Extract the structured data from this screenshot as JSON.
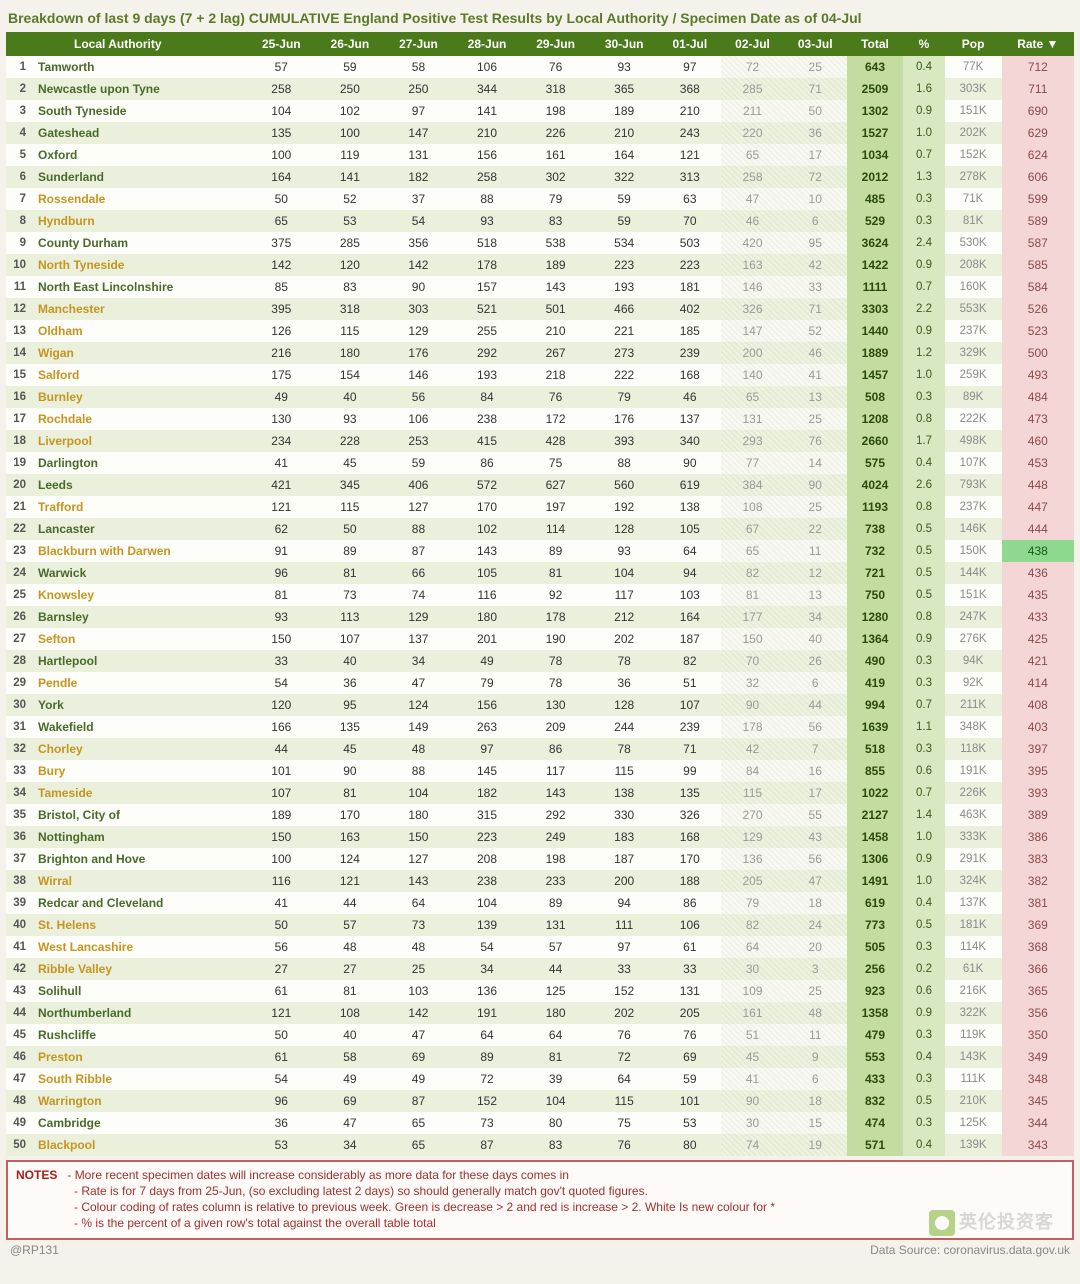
{
  "title": "Breakdown of last 9 days (7 + 2 lag)  CUMULATIVE England Positive Test Results by Local Authority / Specimen Date as of 04-Jul",
  "columns": [
    "Local Authority",
    "25-Jun",
    "26-Jun",
    "27-Jun",
    "28-Jun",
    "29-Jun",
    "30-Jun",
    "01-Jul",
    "02-Jul",
    "03-Jul",
    "Total",
    "%",
    "Pop",
    "Rate ▼"
  ],
  "lag_cols": [
    8,
    9
  ],
  "rate_color_default": "#f5d6d6",
  "rate_text_default": "#8a4a4a",
  "highlighted_rows": [
    7,
    8,
    10,
    12,
    13,
    14,
    15,
    16,
    17,
    18,
    21,
    23,
    25,
    27,
    29,
    32,
    33,
    34,
    38,
    40,
    41,
    42,
    46,
    47,
    48,
    50
  ],
  "rows": [
    {
      "n": 1,
      "la": "Tamworth",
      "d": [
        57,
        59,
        58,
        106,
        76,
        93,
        97,
        72,
        25
      ],
      "total": 643,
      "pct": "0.4",
      "pop": "77K",
      "rate": 712
    },
    {
      "n": 2,
      "la": "Newcastle upon Tyne",
      "d": [
        258,
        250,
        250,
        344,
        318,
        365,
        368,
        285,
        71
      ],
      "total": 2509,
      "pct": "1.6",
      "pop": "303K",
      "rate": 711
    },
    {
      "n": 3,
      "la": "South Tyneside",
      "d": [
        104,
        102,
        97,
        141,
        198,
        189,
        210,
        211,
        50
      ],
      "total": 1302,
      "pct": "0.9",
      "pop": "151K",
      "rate": 690
    },
    {
      "n": 4,
      "la": "Gateshead",
      "d": [
        135,
        100,
        147,
        210,
        226,
        210,
        243,
        220,
        36
      ],
      "total": 1527,
      "pct": "1.0",
      "pop": "202K",
      "rate": 629
    },
    {
      "n": 5,
      "la": "Oxford",
      "d": [
        100,
        119,
        131,
        156,
        161,
        164,
        121,
        65,
        17
      ],
      "total": 1034,
      "pct": "0.7",
      "pop": "152K",
      "rate": 624
    },
    {
      "n": 6,
      "la": "Sunderland",
      "d": [
        164,
        141,
        182,
        258,
        302,
        322,
        313,
        258,
        72
      ],
      "total": 2012,
      "pct": "1.3",
      "pop": "278K",
      "rate": 606
    },
    {
      "n": 7,
      "la": "Rossendale",
      "d": [
        50,
        52,
        37,
        88,
        79,
        59,
        63,
        47,
        10
      ],
      "total": 485,
      "pct": "0.3",
      "pop": "71K",
      "rate": 599
    },
    {
      "n": 8,
      "la": "Hyndburn",
      "d": [
        65,
        53,
        54,
        93,
        83,
        59,
        70,
        46,
        6
      ],
      "total": 529,
      "pct": "0.3",
      "pop": "81K",
      "rate": 589
    },
    {
      "n": 9,
      "la": "County Durham",
      "d": [
        375,
        285,
        356,
        518,
        538,
        534,
        503,
        420,
        95
      ],
      "total": 3624,
      "pct": "2.4",
      "pop": "530K",
      "rate": 587
    },
    {
      "n": 10,
      "la": "North Tyneside",
      "d": [
        142,
        120,
        142,
        178,
        189,
        223,
        223,
        163,
        42
      ],
      "total": 1422,
      "pct": "0.9",
      "pop": "208K",
      "rate": 585
    },
    {
      "n": 11,
      "la": "North East Lincolnshire",
      "d": [
        85,
        83,
        90,
        157,
        143,
        193,
        181,
        146,
        33
      ],
      "total": 1111,
      "pct": "0.7",
      "pop": "160K",
      "rate": 584
    },
    {
      "n": 12,
      "la": "Manchester",
      "d": [
        395,
        318,
        303,
        521,
        501,
        466,
        402,
        326,
        71
      ],
      "total": 3303,
      "pct": "2.2",
      "pop": "553K",
      "rate": 526
    },
    {
      "n": 13,
      "la": "Oldham",
      "d": [
        126,
        115,
        129,
        255,
        210,
        221,
        185,
        147,
        52
      ],
      "total": 1440,
      "pct": "0.9",
      "pop": "237K",
      "rate": 523
    },
    {
      "n": 14,
      "la": "Wigan",
      "d": [
        216,
        180,
        176,
        292,
        267,
        273,
        239,
        200,
        46
      ],
      "total": 1889,
      "pct": "1.2",
      "pop": "329K",
      "rate": 500
    },
    {
      "n": 15,
      "la": "Salford",
      "d": [
        175,
        154,
        146,
        193,
        218,
        222,
        168,
        140,
        41
      ],
      "total": 1457,
      "pct": "1.0",
      "pop": "259K",
      "rate": 493
    },
    {
      "n": 16,
      "la": "Burnley",
      "d": [
        49,
        40,
        56,
        84,
        76,
        79,
        46,
        65,
        13
      ],
      "total": 508,
      "pct": "0.3",
      "pop": "89K",
      "rate": 484
    },
    {
      "n": 17,
      "la": "Rochdale",
      "d": [
        130,
        93,
        106,
        238,
        172,
        176,
        137,
        131,
        25
      ],
      "total": 1208,
      "pct": "0.8",
      "pop": "222K",
      "rate": 473
    },
    {
      "n": 18,
      "la": "Liverpool",
      "d": [
        234,
        228,
        253,
        415,
        428,
        393,
        340,
        293,
        76
      ],
      "total": 2660,
      "pct": "1.7",
      "pop": "498K",
      "rate": 460
    },
    {
      "n": 19,
      "la": "Darlington",
      "d": [
        41,
        45,
        59,
        86,
        75,
        88,
        90,
        77,
        14
      ],
      "total": 575,
      "pct": "0.4",
      "pop": "107K",
      "rate": 453
    },
    {
      "n": 20,
      "la": "Leeds",
      "d": [
        421,
        345,
        406,
        572,
        627,
        560,
        619,
        384,
        90
      ],
      "total": 4024,
      "pct": "2.6",
      "pop": "793K",
      "rate": 448
    },
    {
      "n": 21,
      "la": "Trafford",
      "d": [
        121,
        115,
        127,
        170,
        197,
        192,
        138,
        108,
        25
      ],
      "total": 1193,
      "pct": "0.8",
      "pop": "237K",
      "rate": 447
    },
    {
      "n": 22,
      "la": "Lancaster",
      "d": [
        62,
        50,
        88,
        102,
        114,
        128,
        105,
        67,
        22
      ],
      "total": 738,
      "pct": "0.5",
      "pop": "146K",
      "rate": 444
    },
    {
      "n": 23,
      "la": "Blackburn with Darwen",
      "d": [
        91,
        89,
        87,
        143,
        89,
        93,
        64,
        65,
        11
      ],
      "total": 732,
      "pct": "0.5",
      "pop": "150K",
      "rate": 438,
      "rate_bg": "#8ed98e",
      "rate_text": "#1a5a1a"
    },
    {
      "n": 24,
      "la": "Warwick",
      "d": [
        96,
        81,
        66,
        105,
        81,
        104,
        94,
        82,
        12
      ],
      "total": 721,
      "pct": "0.5",
      "pop": "144K",
      "rate": 436
    },
    {
      "n": 25,
      "la": "Knowsley",
      "d": [
        81,
        73,
        74,
        116,
        92,
        117,
        103,
        81,
        13
      ],
      "total": 750,
      "pct": "0.5",
      "pop": "151K",
      "rate": 435
    },
    {
      "n": 26,
      "la": "Barnsley",
      "d": [
        93,
        113,
        129,
        180,
        178,
        212,
        164,
        177,
        34
      ],
      "total": 1280,
      "pct": "0.8",
      "pop": "247K",
      "rate": 433
    },
    {
      "n": 27,
      "la": "Sefton",
      "d": [
        150,
        107,
        137,
        201,
        190,
        202,
        187,
        150,
        40
      ],
      "total": 1364,
      "pct": "0.9",
      "pop": "276K",
      "rate": 425
    },
    {
      "n": 28,
      "la": "Hartlepool",
      "d": [
        33,
        40,
        34,
        49,
        78,
        78,
        82,
        70,
        26
      ],
      "total": 490,
      "pct": "0.3",
      "pop": "94K",
      "rate": 421
    },
    {
      "n": 29,
      "la": "Pendle",
      "d": [
        54,
        36,
        47,
        79,
        78,
        36,
        51,
        32,
        6
      ],
      "total": 419,
      "pct": "0.3",
      "pop": "92K",
      "rate": 414
    },
    {
      "n": 30,
      "la": "York",
      "d": [
        120,
        95,
        124,
        156,
        130,
        128,
        107,
        90,
        44
      ],
      "total": 994,
      "pct": "0.7",
      "pop": "211K",
      "rate": 408
    },
    {
      "n": 31,
      "la": "Wakefield",
      "d": [
        166,
        135,
        149,
        263,
        209,
        244,
        239,
        178,
        56
      ],
      "total": 1639,
      "pct": "1.1",
      "pop": "348K",
      "rate": 403
    },
    {
      "n": 32,
      "la": "Chorley",
      "d": [
        44,
        45,
        48,
        97,
        86,
        78,
        71,
        42,
        7
      ],
      "total": 518,
      "pct": "0.3",
      "pop": "118K",
      "rate": 397
    },
    {
      "n": 33,
      "la": "Bury",
      "d": [
        101,
        90,
        88,
        145,
        117,
        115,
        99,
        84,
        16
      ],
      "total": 855,
      "pct": "0.6",
      "pop": "191K",
      "rate": 395
    },
    {
      "n": 34,
      "la": "Tameside",
      "d": [
        107,
        81,
        104,
        182,
        143,
        138,
        135,
        115,
        17
      ],
      "total": 1022,
      "pct": "0.7",
      "pop": "226K",
      "rate": 393
    },
    {
      "n": 35,
      "la": "Bristol, City of",
      "d": [
        189,
        170,
        180,
        315,
        292,
        330,
        326,
        270,
        55
      ],
      "total": 2127,
      "pct": "1.4",
      "pop": "463K",
      "rate": 389
    },
    {
      "n": 36,
      "la": "Nottingham",
      "d": [
        150,
        163,
        150,
        223,
        249,
        183,
        168,
        129,
        43
      ],
      "total": 1458,
      "pct": "1.0",
      "pop": "333K",
      "rate": 386
    },
    {
      "n": 37,
      "la": "Brighton and Hove",
      "d": [
        100,
        124,
        127,
        208,
        198,
        187,
        170,
        136,
        56
      ],
      "total": 1306,
      "pct": "0.9",
      "pop": "291K",
      "rate": 383
    },
    {
      "n": 38,
      "la": "Wirral",
      "d": [
        116,
        121,
        143,
        238,
        233,
        200,
        188,
        205,
        47
      ],
      "total": 1491,
      "pct": "1.0",
      "pop": "324K",
      "rate": 382
    },
    {
      "n": 39,
      "la": "Redcar and Cleveland",
      "d": [
        41,
        44,
        64,
        104,
        89,
        94,
        86,
        79,
        18
      ],
      "total": 619,
      "pct": "0.4",
      "pop": "137K",
      "rate": 381
    },
    {
      "n": 40,
      "la": "St. Helens",
      "d": [
        50,
        57,
        73,
        139,
        131,
        111,
        106,
        82,
        24
      ],
      "total": 773,
      "pct": "0.5",
      "pop": "181K",
      "rate": 369
    },
    {
      "n": 41,
      "la": "West Lancashire",
      "d": [
        56,
        48,
        48,
        54,
        57,
        97,
        61,
        64,
        20
      ],
      "total": 505,
      "pct": "0.3",
      "pop": "114K",
      "rate": 368
    },
    {
      "n": 42,
      "la": "Ribble Valley",
      "d": [
        27,
        27,
        25,
        34,
        44,
        33,
        33,
        30,
        3
      ],
      "total": 256,
      "pct": "0.2",
      "pop": "61K",
      "rate": 366
    },
    {
      "n": 43,
      "la": "Solihull",
      "d": [
        61,
        81,
        103,
        136,
        125,
        152,
        131,
        109,
        25
      ],
      "total": 923,
      "pct": "0.6",
      "pop": "216K",
      "rate": 365
    },
    {
      "n": 44,
      "la": "Northumberland",
      "d": [
        121,
        108,
        142,
        191,
        180,
        202,
        205,
        161,
        48
      ],
      "total": 1358,
      "pct": "0.9",
      "pop": "322K",
      "rate": 356
    },
    {
      "n": 45,
      "la": "Rushcliffe",
      "d": [
        50,
        40,
        47,
        64,
        64,
        76,
        76,
        51,
        11
      ],
      "total": 479,
      "pct": "0.3",
      "pop": "119K",
      "rate": 350
    },
    {
      "n": 46,
      "la": "Preston",
      "d": [
        61,
        58,
        69,
        89,
        81,
        72,
        69,
        45,
        9
      ],
      "total": 553,
      "pct": "0.4",
      "pop": "143K",
      "rate": 349
    },
    {
      "n": 47,
      "la": "South Ribble",
      "d": [
        54,
        49,
        49,
        72,
        39,
        64,
        59,
        41,
        6
      ],
      "total": 433,
      "pct": "0.3",
      "pop": "111K",
      "rate": 348
    },
    {
      "n": 48,
      "la": "Warrington",
      "d": [
        96,
        69,
        87,
        152,
        104,
        115,
        101,
        90,
        18
      ],
      "total": 832,
      "pct": "0.5",
      "pop": "210K",
      "rate": 345
    },
    {
      "n": 49,
      "la": "Cambridge",
      "d": [
        36,
        47,
        65,
        73,
        80,
        75,
        53,
        30,
        15
      ],
      "total": 474,
      "pct": "0.3",
      "pop": "125K",
      "rate": 344
    },
    {
      "n": 50,
      "la": "Blackpool",
      "d": [
        53,
        34,
        65,
        87,
        83,
        76,
        80,
        74,
        19
      ],
      "total": 571,
      "pct": "0.4",
      "pop": "139K",
      "rate": 343
    }
  ],
  "notes_title": "NOTES",
  "notes": [
    "- More recent specimen dates will increase considerably as more data for these days comes in",
    "- Rate is for 7 days from 25-Jun, (so excluding latest 2 days) so should generally match gov't quoted figures.",
    "- Colour coding of rates column is relative to previous week. Green is decrease > 2 and red is increase > 2. White Is new colour for *",
    "- % is the percent of a given row's total against the overall table total"
  ],
  "footer_left": "@RP131",
  "footer_right": "Data Source: coronavirus.data.gov.uk",
  "watermark": "英伦投资客"
}
